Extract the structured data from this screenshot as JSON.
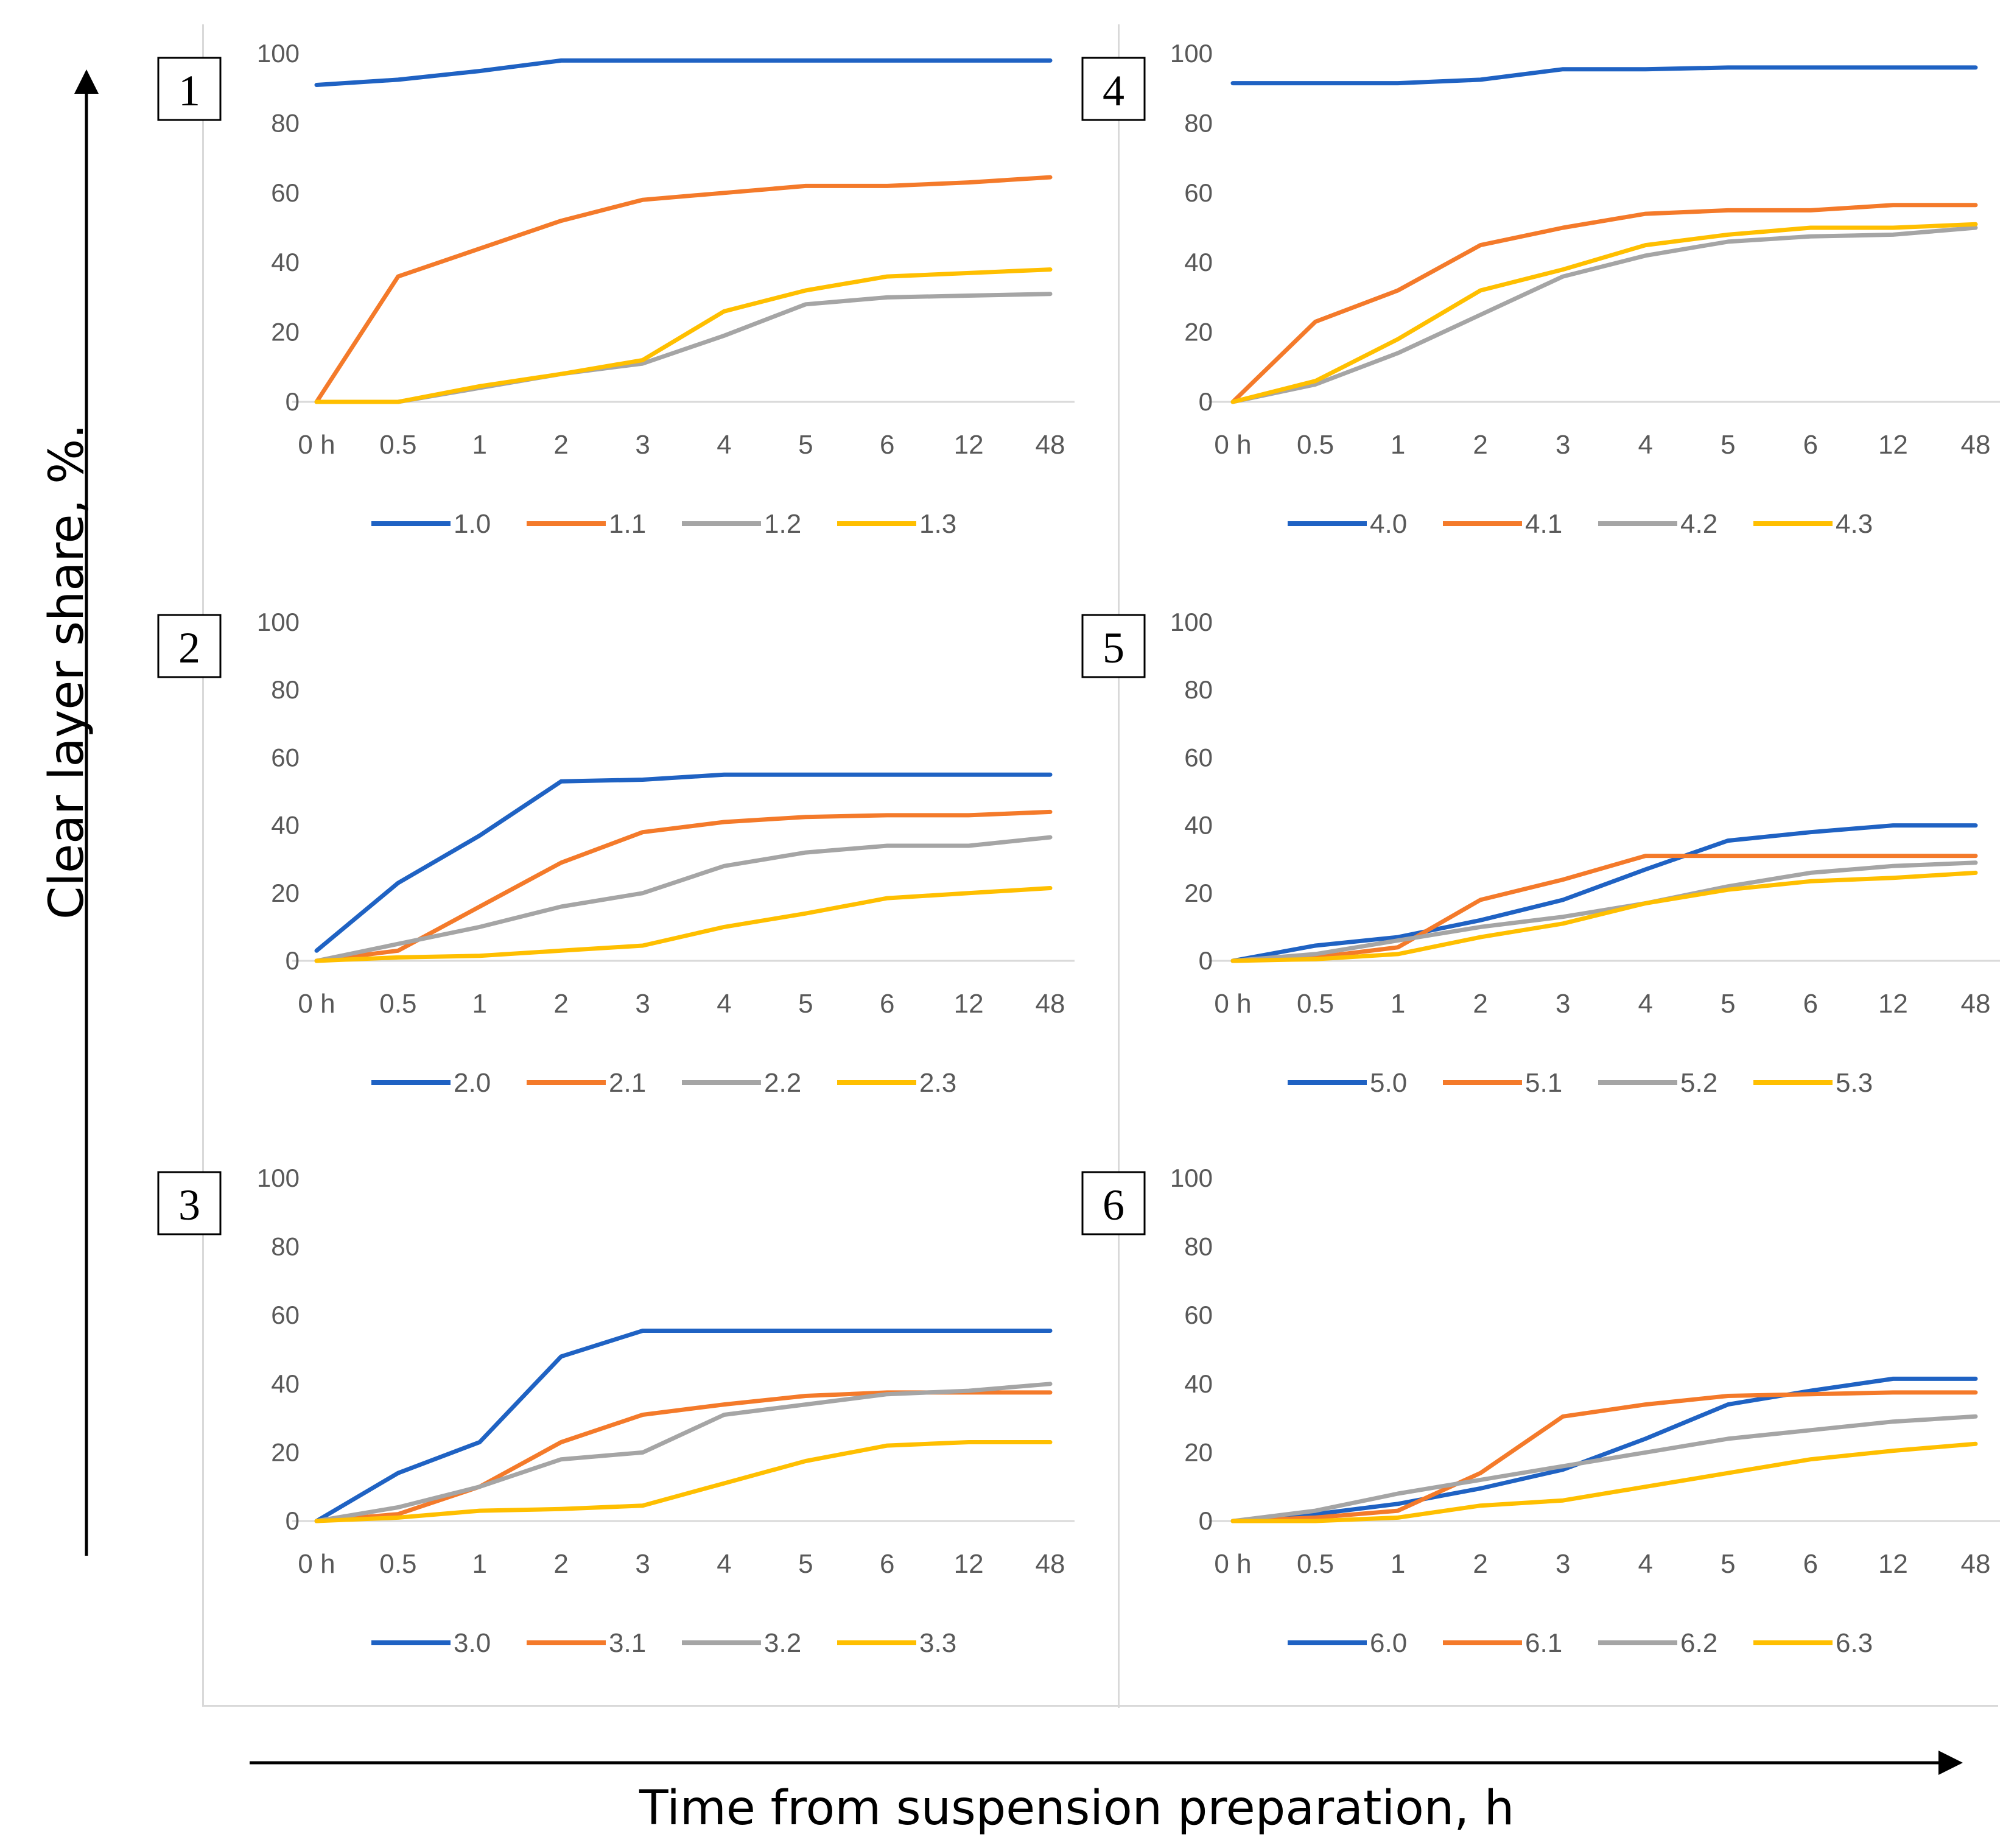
{
  "figure": {
    "y_axis_title": "Clear layer share, %.",
    "x_axis_title": "Time from suspension preparation, h"
  },
  "colors": {
    "series0": "#1f62c3",
    "series1": "#f47a2a",
    "series2": "#a5a5a5",
    "series3": "#ffbf00",
    "tick_text": "#595959",
    "axis_line": "#d9d9d9"
  },
  "chart_data": [
    {
      "type": "line",
      "panel_label": "1",
      "categories": [
        "0 h",
        "0.5",
        "1",
        "2",
        "3",
        "4",
        "5",
        "6",
        "12",
        "48"
      ],
      "yticks": [
        "0",
        "20",
        "40",
        "60",
        "80",
        "100"
      ],
      "ylim": [
        0,
        100
      ],
      "legend_position": "bottom",
      "series": [
        {
          "name": "1.0",
          "values": [
            91,
            92.5,
            95,
            98,
            98,
            98,
            98,
            98,
            98,
            98
          ]
        },
        {
          "name": "1.1",
          "values": [
            0,
            36,
            44,
            52,
            58,
            60,
            62,
            62,
            63,
            64.5
          ]
        },
        {
          "name": "1.2",
          "values": [
            0,
            0,
            4,
            8,
            11,
            19,
            28,
            30,
            30.5,
            31
          ]
        },
        {
          "name": "1.3",
          "values": [
            0,
            0,
            4.5,
            8,
            12,
            26,
            32,
            36,
            37,
            38
          ]
        }
      ]
    },
    {
      "type": "line",
      "panel_label": "2",
      "categories": [
        "0 h",
        "0.5",
        "1",
        "2",
        "3",
        "4",
        "5",
        "6",
        "12",
        "48"
      ],
      "yticks": [
        "0",
        "20",
        "40",
        "60",
        "80",
        "100"
      ],
      "ylim": [
        0,
        100
      ],
      "legend_position": "bottom",
      "series": [
        {
          "name": "2.0",
          "values": [
            3,
            23,
            37,
            53,
            53.5,
            55,
            55,
            55,
            55,
            55
          ]
        },
        {
          "name": "2.1",
          "values": [
            0,
            3,
            16,
            29,
            38,
            41,
            42.5,
            43,
            43,
            44
          ]
        },
        {
          "name": "2.2",
          "values": [
            0,
            5,
            10,
            16,
            20,
            28,
            32,
            34,
            34,
            36.5
          ]
        },
        {
          "name": "2.3",
          "values": [
            0,
            1,
            1.5,
            3,
            4.5,
            10,
            14,
            18.5,
            20,
            21.5
          ]
        }
      ]
    },
    {
      "type": "line",
      "panel_label": "3",
      "categories": [
        "0 h",
        "0.5",
        "1",
        "2",
        "3",
        "4",
        "5",
        "6",
        "12",
        "48"
      ],
      "yticks": [
        "0",
        "20",
        "40",
        "60",
        "80",
        "100"
      ],
      "ylim": [
        0,
        100
      ],
      "legend_position": "bottom",
      "series": [
        {
          "name": "3.0",
          "values": [
            0,
            14,
            23,
            48,
            55.5,
            55.5,
            55.5,
            55.5,
            55.5,
            55.5
          ]
        },
        {
          "name": "3.1",
          "values": [
            0,
            2,
            10,
            23,
            31,
            34,
            36.5,
            37.5,
            37.5,
            37.5
          ]
        },
        {
          "name": "3.2",
          "values": [
            0,
            4,
            10,
            18,
            20,
            31,
            34,
            37,
            38,
            40
          ]
        },
        {
          "name": "3.3",
          "values": [
            0,
            1,
            3,
            3.5,
            4.5,
            11,
            17.5,
            22,
            23,
            23
          ]
        }
      ]
    },
    {
      "type": "line",
      "panel_label": "4",
      "categories": [
        "0 h",
        "0.5",
        "1",
        "2",
        "3",
        "4",
        "5",
        "6",
        "12",
        "48"
      ],
      "yticks": [
        "0",
        "20",
        "40",
        "60",
        "80",
        "100"
      ],
      "ylim": [
        0,
        100
      ],
      "legend_position": "bottom",
      "series": [
        {
          "name": "4.0",
          "values": [
            91.5,
            91.5,
            91.5,
            92.5,
            95.5,
            95.5,
            96,
            96,
            96,
            96
          ]
        },
        {
          "name": "4.1",
          "values": [
            0,
            23,
            32,
            45,
            50,
            54,
            55,
            55,
            56.5,
            56.5
          ]
        },
        {
          "name": "4.2",
          "values": [
            0,
            5,
            14,
            25,
            36,
            42,
            46,
            47.5,
            48,
            50
          ]
        },
        {
          "name": "4.3",
          "values": [
            0,
            6,
            18,
            32,
            38,
            45,
            48,
            50,
            50,
            51
          ]
        }
      ]
    },
    {
      "type": "line",
      "panel_label": "5",
      "categories": [
        "0 h",
        "0.5",
        "1",
        "2",
        "3",
        "4",
        "5",
        "6",
        "12",
        "48"
      ],
      "yticks": [
        "0",
        "20",
        "40",
        "60",
        "80",
        "100"
      ],
      "ylim": [
        0,
        100
      ],
      "legend_position": "bottom",
      "series": [
        {
          "name": "5.0",
          "values": [
            0,
            4.5,
            7,
            12,
            18,
            27,
            35.5,
            38,
            40,
            40
          ]
        },
        {
          "name": "5.1",
          "values": [
            0,
            1,
            4,
            18,
            24,
            31,
            31,
            31,
            31,
            31
          ]
        },
        {
          "name": "5.2",
          "values": [
            0,
            2,
            6,
            10,
            13,
            17,
            22,
            26,
            28,
            29
          ]
        },
        {
          "name": "5.3",
          "values": [
            0,
            0.5,
            2,
            7,
            11,
            17,
            21,
            23.5,
            24.5,
            26
          ]
        }
      ]
    },
    {
      "type": "line",
      "panel_label": "6",
      "categories": [
        "0 h",
        "0.5",
        "1",
        "2",
        "3",
        "4",
        "5",
        "6",
        "12",
        "48"
      ],
      "yticks": [
        "0",
        "20",
        "40",
        "60",
        "80",
        "100"
      ],
      "ylim": [
        0,
        100
      ],
      "legend_position": "bottom",
      "series": [
        {
          "name": "6.0",
          "values": [
            0,
            2,
            5,
            9.5,
            15,
            24,
            34,
            38,
            41.5,
            41.5
          ]
        },
        {
          "name": "6.1",
          "values": [
            0,
            1,
            3,
            14,
            30.5,
            34,
            36.5,
            37,
            37.5,
            37.5
          ]
        },
        {
          "name": "6.2",
          "values": [
            0,
            3,
            8,
            12,
            16,
            20,
            24,
            26.5,
            29,
            30.5
          ]
        },
        {
          "name": "6.3",
          "values": [
            0,
            0,
            1,
            4.5,
            6,
            10,
            14,
            18,
            20.5,
            22.5
          ]
        }
      ]
    }
  ]
}
